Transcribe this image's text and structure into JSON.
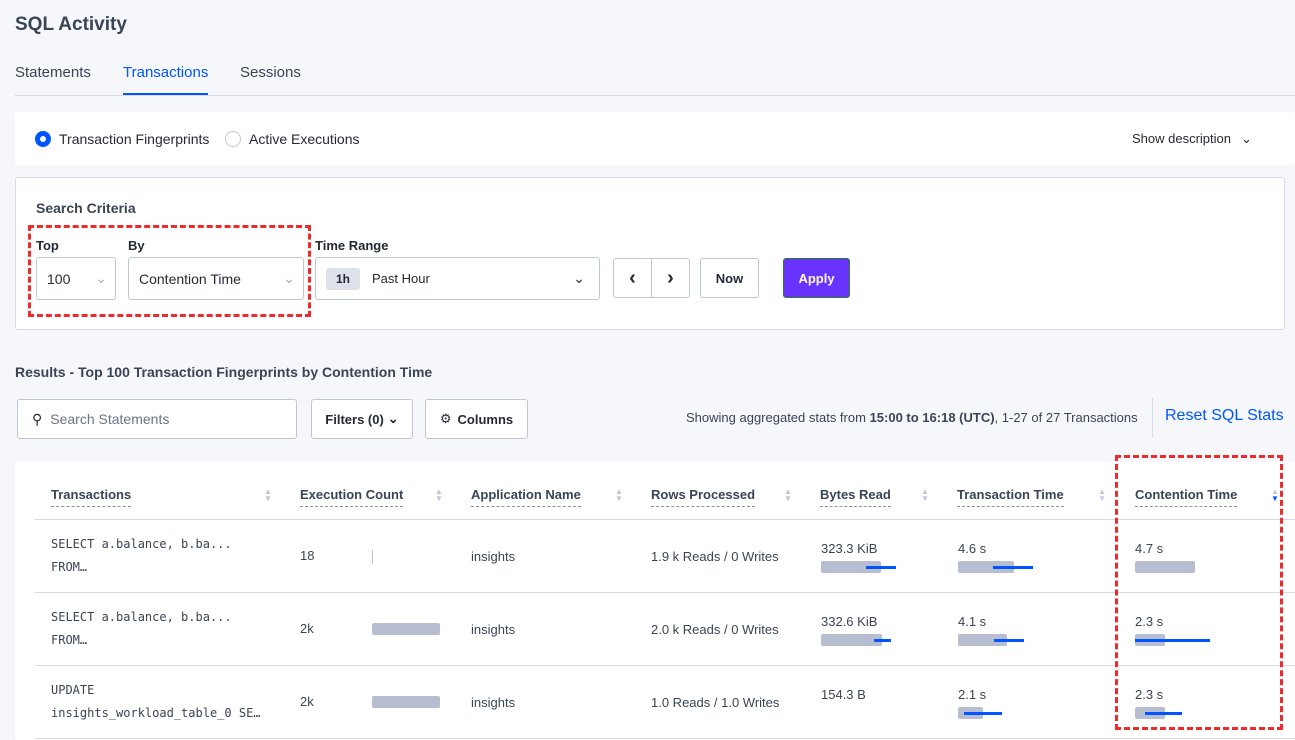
{
  "page_title": "SQL Activity",
  "tabs": [
    {
      "label": "Statements"
    },
    {
      "label": "Transactions",
      "active": true
    },
    {
      "label": "Sessions"
    }
  ],
  "view": {
    "options": [
      "Transaction Fingerprints",
      "Active Executions"
    ],
    "selected": "Transaction Fingerprints",
    "show_description": "Show description"
  },
  "search": {
    "heading": "Search Criteria",
    "top_label": "Top",
    "top_value": "100",
    "by_label": "By",
    "by_value": "Contention Time",
    "time_range_label": "Time Range",
    "time_badge": "1h",
    "time_value": "Past Hour",
    "now": "Now",
    "apply": "Apply"
  },
  "results": {
    "heading": "Results - Top 100 Transaction Fingerprints by Contention Time",
    "search_placeholder": "Search Statements",
    "filters": "Filters (0)",
    "columns": "Columns",
    "summary_prefix": "Showing aggregated stats from ",
    "summary_range": "15:00 to 16:18 (UTC)",
    "summary_suffix": ", 1-27 of 27 Transactions",
    "reset": "Reset SQL Stats"
  },
  "colors": {
    "accent": "#0055ff",
    "apply": "#6933ff",
    "highlight": "#ef2a2a"
  },
  "table": {
    "headers": [
      "Transactions",
      "Execution Count",
      "Application Name",
      "Rows Processed",
      "Bytes Read",
      "Transaction Time",
      "Contention Time"
    ],
    "sorted_column": "Contention Time",
    "sort_direction": "descending",
    "rows": [
      {
        "txn1": "SELECT a.balance, b.ba...",
        "txn2": "FROM…",
        "exec": "18",
        "exec_bar": {
          "mean": 0.01
        },
        "app": "insights",
        "rows": "1.9 k Reads / 0 Writes",
        "bytes": "323.3 KiB",
        "bytes_bar": {
          "mean": 0.6,
          "dev": [
            0.45,
            0.75
          ]
        },
        "ttime": "4.6 s",
        "ttime_bar": {
          "mean": 0.56,
          "dev": [
            0.35,
            0.75
          ]
        },
        "ctime": "4.7 s",
        "ctime_bar": {
          "mean": 0.6
        }
      },
      {
        "txn1": "SELECT a.balance, b.ba...",
        "txn2": "FROM…",
        "exec": "2k",
        "exec_bar": {
          "mean": 0.68
        },
        "app": "insights",
        "rows": "2.0 k Reads / 0 Writes",
        "bytes": "332.6 KiB",
        "bytes_bar": {
          "mean": 0.61,
          "dev": [
            0.53,
            0.7
          ]
        },
        "ttime": "4.1 s",
        "ttime_bar": {
          "mean": 0.49,
          "dev": [
            0.36,
            0.66
          ]
        },
        "ctime": "2.3 s",
        "ctime_bar": {
          "mean": 0.3,
          "dev": [
            0,
            0.75
          ]
        }
      },
      {
        "txn1": "UPDATE",
        "txn2": "insights_workload_table_0 SE…",
        "exec": "2k",
        "exec_bar": {
          "mean": 0.68
        },
        "app": "insights",
        "rows": "1.0 Reads / 1.0 Writes",
        "bytes": "154.3 B",
        "ttime": "2.1 s",
        "ttime_bar": {
          "mean": 0.25,
          "dev": [
            0.06,
            0.44
          ]
        },
        "ctime": "2.3 s",
        "ctime_bar": {
          "mean": 0.3,
          "dev": [
            0.1,
            0.47
          ]
        }
      }
    ]
  }
}
